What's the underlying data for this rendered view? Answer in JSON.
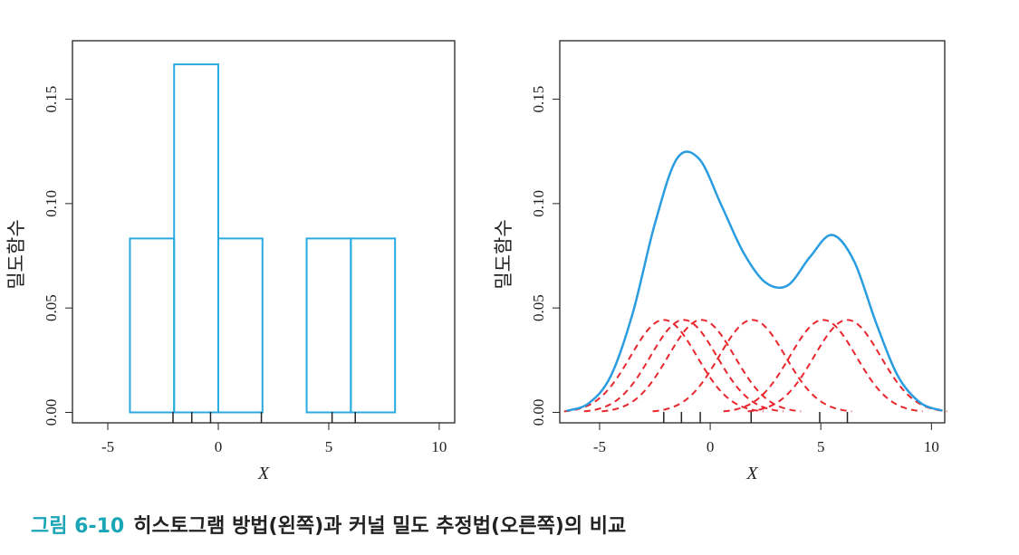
{
  "caption": {
    "label": "그림 6-10",
    "text": "히스토그램 방법(왼쪽)과 커널 밀도 추정법(오른쪽)의 비교"
  },
  "chart_data": [
    {
      "type": "histogram",
      "xlabel": "X",
      "ylabel": "밀도함수",
      "color": "#29abe2",
      "bins": [
        -4,
        -2,
        0,
        2,
        4,
        6,
        8
      ],
      "values": [
        0.0833,
        0.1667,
        0.0833,
        0,
        0.0833,
        0.0833
      ],
      "rug": [
        -2.05,
        -1.2,
        -0.35,
        1.95,
        5.15,
        6.2
      ],
      "xlim": [
        -6.6,
        10.7
      ],
      "ylim": [
        -0.005,
        0.178
      ],
      "xticks": [
        -5,
        0,
        5,
        10
      ],
      "yticks": [
        {
          "value": 0,
          "label": "0.00"
        },
        {
          "value": 0.05,
          "label": "0.05"
        },
        {
          "value": 0.1,
          "label": "0.10"
        },
        {
          "value": 0.15,
          "label": "0.15"
        }
      ]
    },
    {
      "type": "line",
      "xlabel": "X",
      "ylabel": "밀도함수",
      "x": [
        -6.5,
        -5.5,
        -4.5,
        -3.5,
        -2.5,
        -1.5,
        -0.5,
        0.5,
        1.5,
        2.5,
        3.5,
        4.5,
        5.5,
        6.5,
        7.5,
        8.5,
        9.5,
        10.5
      ],
      "series": [
        {
          "color": "#2a9de0",
          "values": [
            0.0007,
            0.0043,
            0.0173,
            0.0476,
            0.0904,
            0.1216,
            0.1214,
            0.0993,
            0.0766,
            0.0622,
            0.0608,
            0.0743,
            0.085,
            0.0725,
            0.0428,
            0.0171,
            0.0046,
            0.0008
          ]
        }
      ],
      "kernel_color": "#e8262d",
      "bandwidth": 1.5,
      "kernels": [
        {
          "center": -2.1,
          "peak": 0.0443
        },
        {
          "center": -1.2,
          "peak": 0.0443
        },
        {
          "center": -0.4,
          "peak": 0.0443
        },
        {
          "center": 1.9,
          "peak": 0.0443
        },
        {
          "center": 5.1,
          "peak": 0.0443
        },
        {
          "center": 6.2,
          "peak": 0.0443
        }
      ],
      "rug": [
        -2.1,
        -1.3,
        -0.45,
        1.85,
        4.95,
        6.2
      ],
      "xlim": [
        -6.8,
        10.6
      ],
      "ylim": [
        -0.005,
        0.178
      ],
      "xticks": [
        -5,
        0,
        5,
        10
      ],
      "yticks": [
        {
          "value": 0,
          "label": "0.00"
        },
        {
          "value": 0.05,
          "label": "0.05"
        },
        {
          "value": 0.1,
          "label": "0.10"
        },
        {
          "value": 0.15,
          "label": "0.15"
        }
      ]
    }
  ]
}
